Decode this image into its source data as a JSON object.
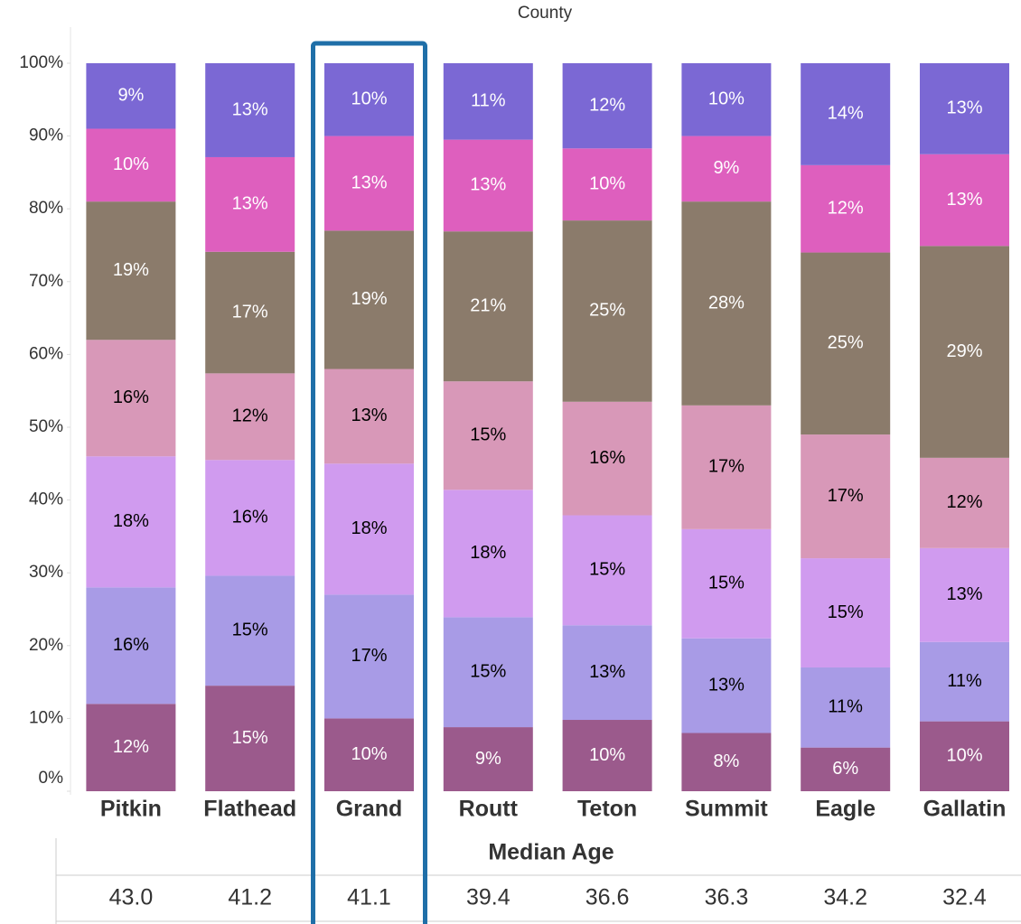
{
  "chart_data": {
    "type": "stacked_bar",
    "x_label": "County",
    "categories": [
      "Pitkin",
      "Flathead",
      "Grand",
      "Routt",
      "Teton",
      "Summit",
      "Eagle",
      "Gallatin"
    ],
    "series": [
      {
        "color": "#9b5a8c",
        "values": [
          12,
          14.5,
          10,
          8.8,
          9.8,
          8,
          6,
          9.6
        ],
        "value_labels": [
          "12%",
          "15%",
          "10%",
          "9%",
          "10%",
          "8%",
          "6%",
          "10%"
        ]
      },
      {
        "color": "#a89be6",
        "values": [
          16,
          15.1,
          17,
          15.1,
          13.0,
          13,
          11,
          10.9
        ],
        "value_labels": [
          "16%",
          "15%",
          "17%",
          "15%",
          "13%",
          "13%",
          "11%",
          "11%"
        ]
      },
      {
        "color": "#d09bef",
        "values": [
          18,
          15.9,
          18,
          17.5,
          15.1,
          15,
          15,
          12.9
        ],
        "value_labels": [
          "18%",
          "16%",
          "18%",
          "18%",
          "15%",
          "15%",
          "15%",
          "13%"
        ]
      },
      {
        "color": "#d898b8",
        "values": [
          16,
          11.9,
          13,
          14.9,
          15.6,
          17,
          17,
          12.4
        ],
        "value_labels": [
          "16%",
          "12%",
          "13%",
          "15%",
          "16%",
          "17%",
          "17%",
          "12%"
        ]
      },
      {
        "color": "#8b7b6b",
        "values": [
          19,
          16.7,
          19,
          20.6,
          24.9,
          28,
          25,
          29.1
        ],
        "value_labels": [
          "19%",
          "17%",
          "19%",
          "21%",
          "25%",
          "28%",
          "25%",
          "29%"
        ]
      },
      {
        "color": "#de5fbe",
        "values": [
          10,
          13.0,
          13,
          12.6,
          9.9,
          9,
          12,
          12.6
        ],
        "value_labels": [
          "10%",
          "13%",
          "13%",
          "13%",
          "10%",
          "9%",
          "12%",
          "13%"
        ]
      },
      {
        "color": "#7b68d4",
        "values": [
          9,
          12.9,
          10,
          10.5,
          11.7,
          10,
          14,
          12.5
        ],
        "value_labels": [
          "9%",
          "13%",
          "10%",
          "11%",
          "12%",
          "10%",
          "14%",
          "13%"
        ]
      }
    ],
    "ylim": [
      0,
      100
    ],
    "yticks": [
      {
        "value": 0,
        "label": "0%"
      },
      {
        "value": 10,
        "label": "10%"
      },
      {
        "value": 20,
        "label": "20%"
      },
      {
        "value": 30,
        "label": "30%"
      },
      {
        "value": 40,
        "label": "40%"
      },
      {
        "value": 50,
        "label": "50%"
      },
      {
        "value": 60,
        "label": "60%"
      },
      {
        "value": 70,
        "label": "70%"
      },
      {
        "value": 80,
        "label": "80%"
      },
      {
        "value": 90,
        "label": "90%"
      },
      {
        "value": 100,
        "label": "100%"
      }
    ],
    "highlight": "Grand",
    "highlight_color": "#1f6fa8"
  },
  "table": {
    "title": "Median Age",
    "values": [
      "43.0",
      "41.2",
      "41.1",
      "39.4",
      "36.6",
      "36.3",
      "34.2",
      "32.4"
    ]
  }
}
